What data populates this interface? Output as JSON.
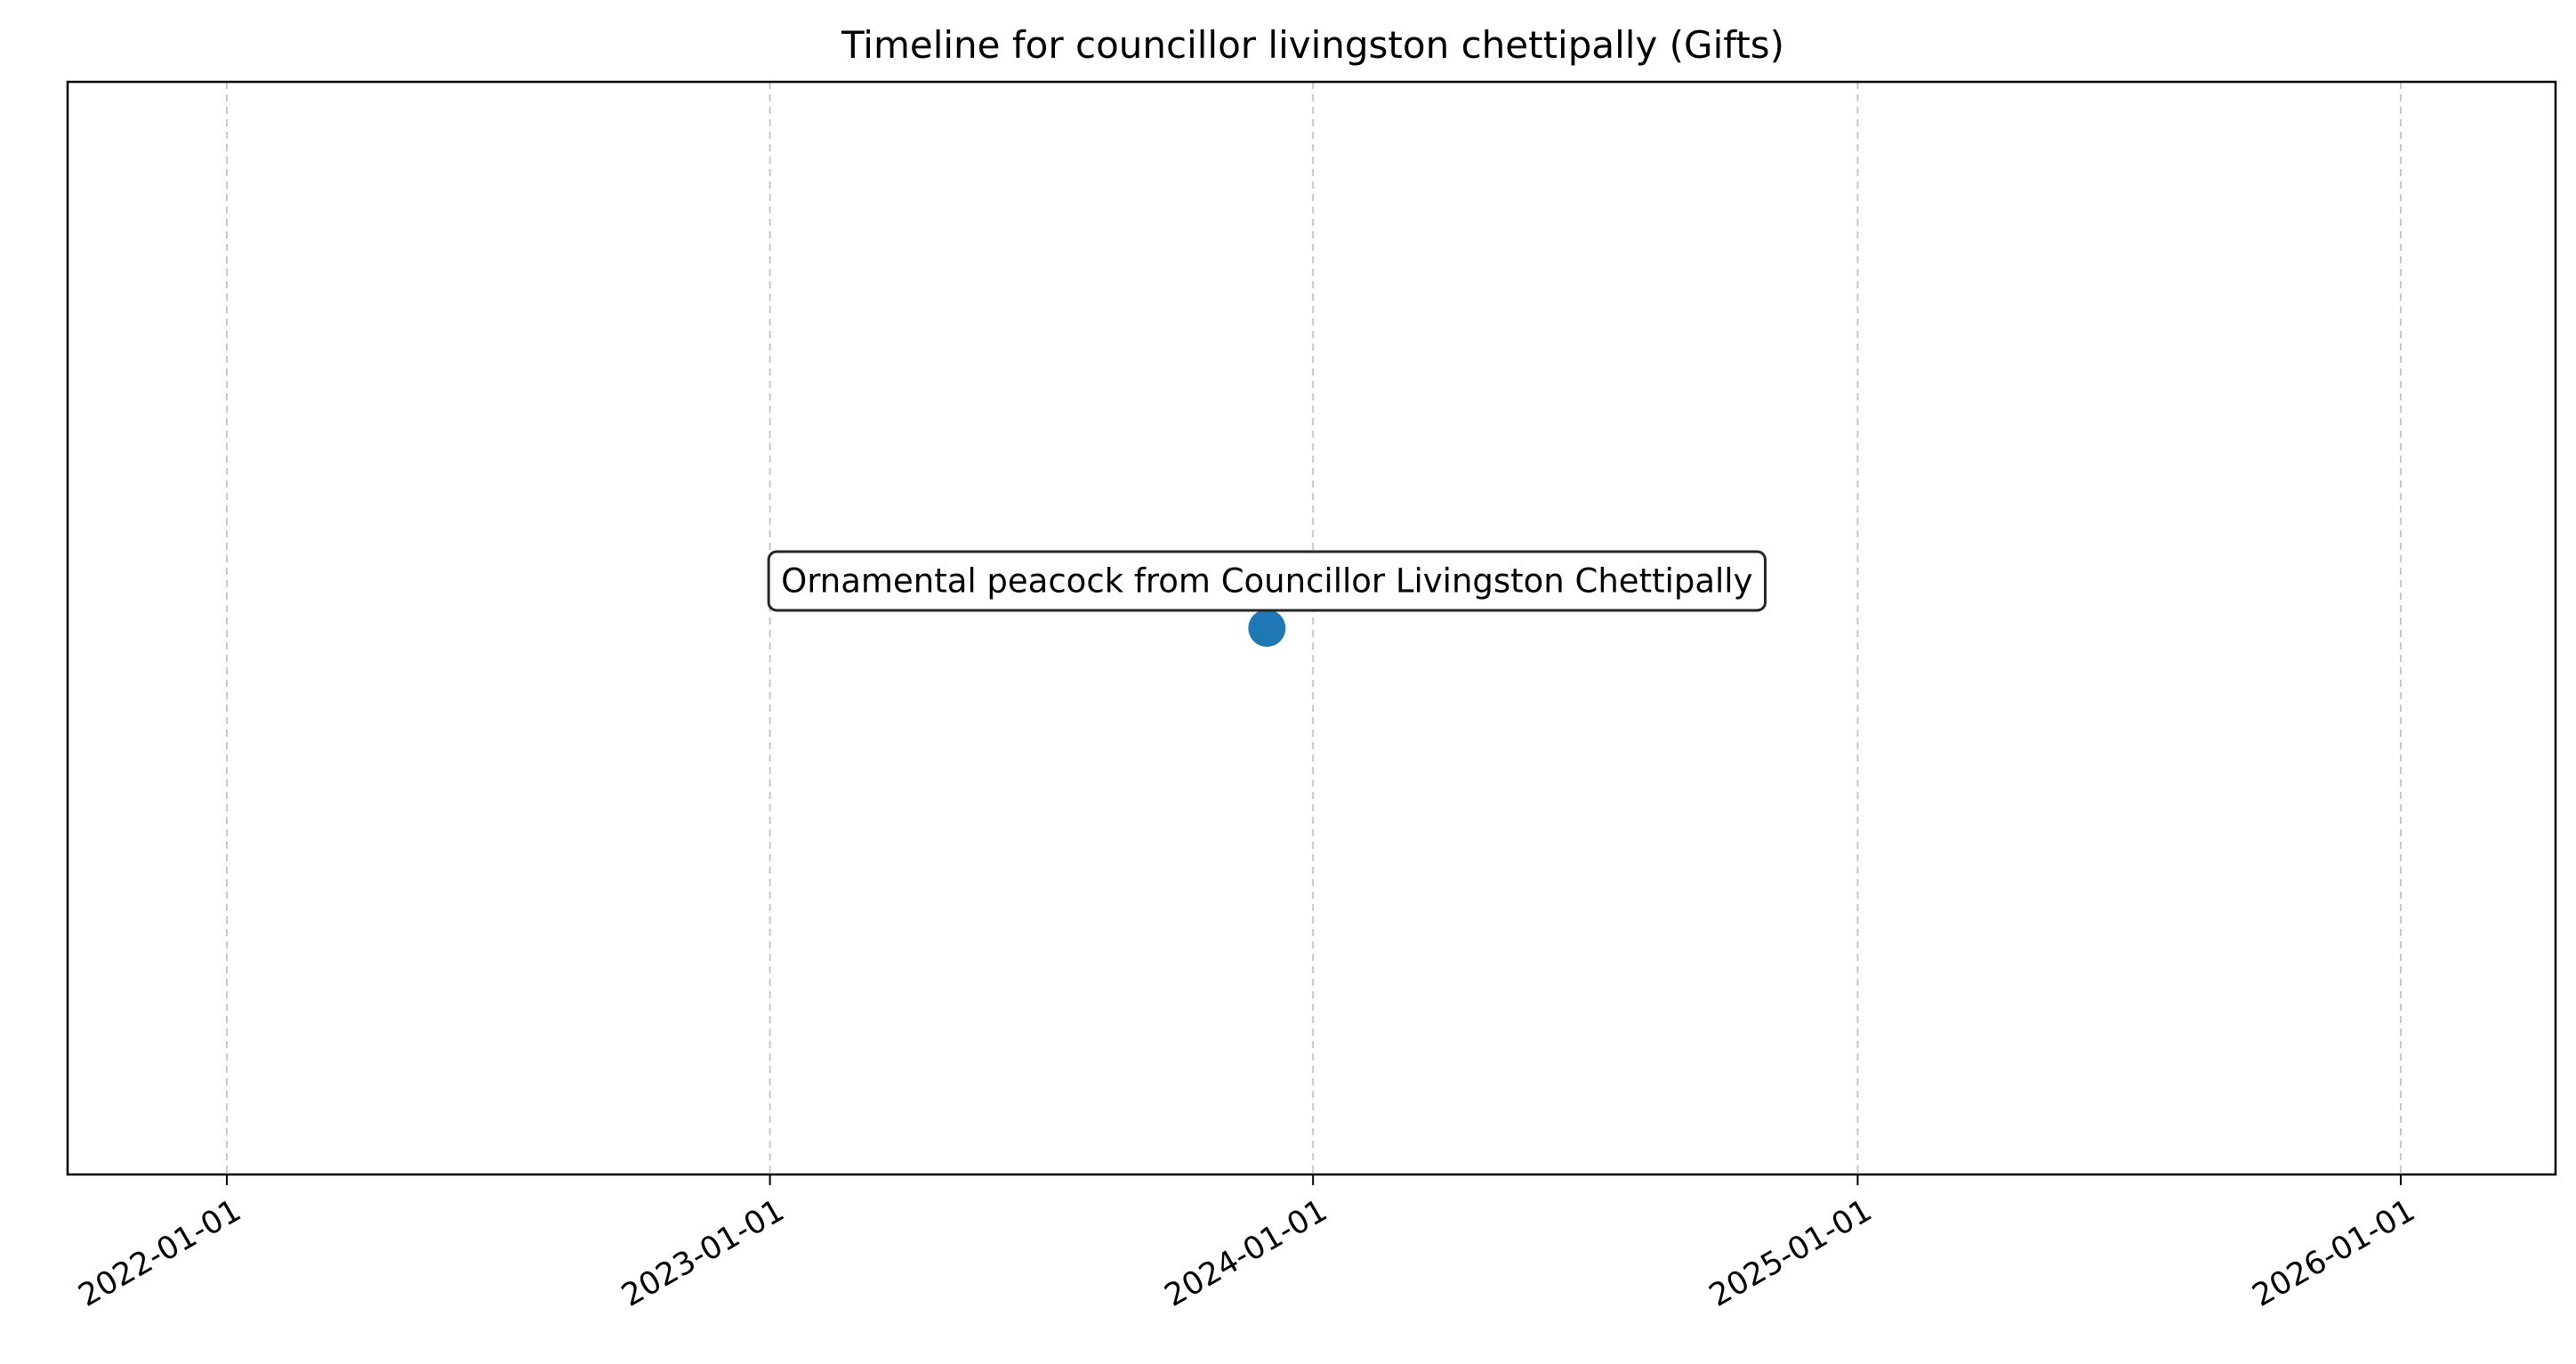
{
  "chart_data": {
    "type": "scatter",
    "title": "Timeline for councillor livingston chettipally (Gifts)",
    "xlabel": "",
    "ylabel": "",
    "x_axis_type": "date",
    "xlim": [
      "2021-09-16",
      "2026-04-15"
    ],
    "ylim": [
      -1,
      1
    ],
    "grid": "vertical dashed",
    "x_ticks": [
      "2022-01-01",
      "2023-01-01",
      "2024-01-01",
      "2025-01-01",
      "2026-01-01"
    ],
    "y_ticks_visible": false,
    "point_color": "#1f77b4",
    "points": [
      {
        "x": "2023-12-01",
        "y": 0,
        "label": "Ornamental peacock from Councillor Livingston Chettipally"
      }
    ]
  }
}
